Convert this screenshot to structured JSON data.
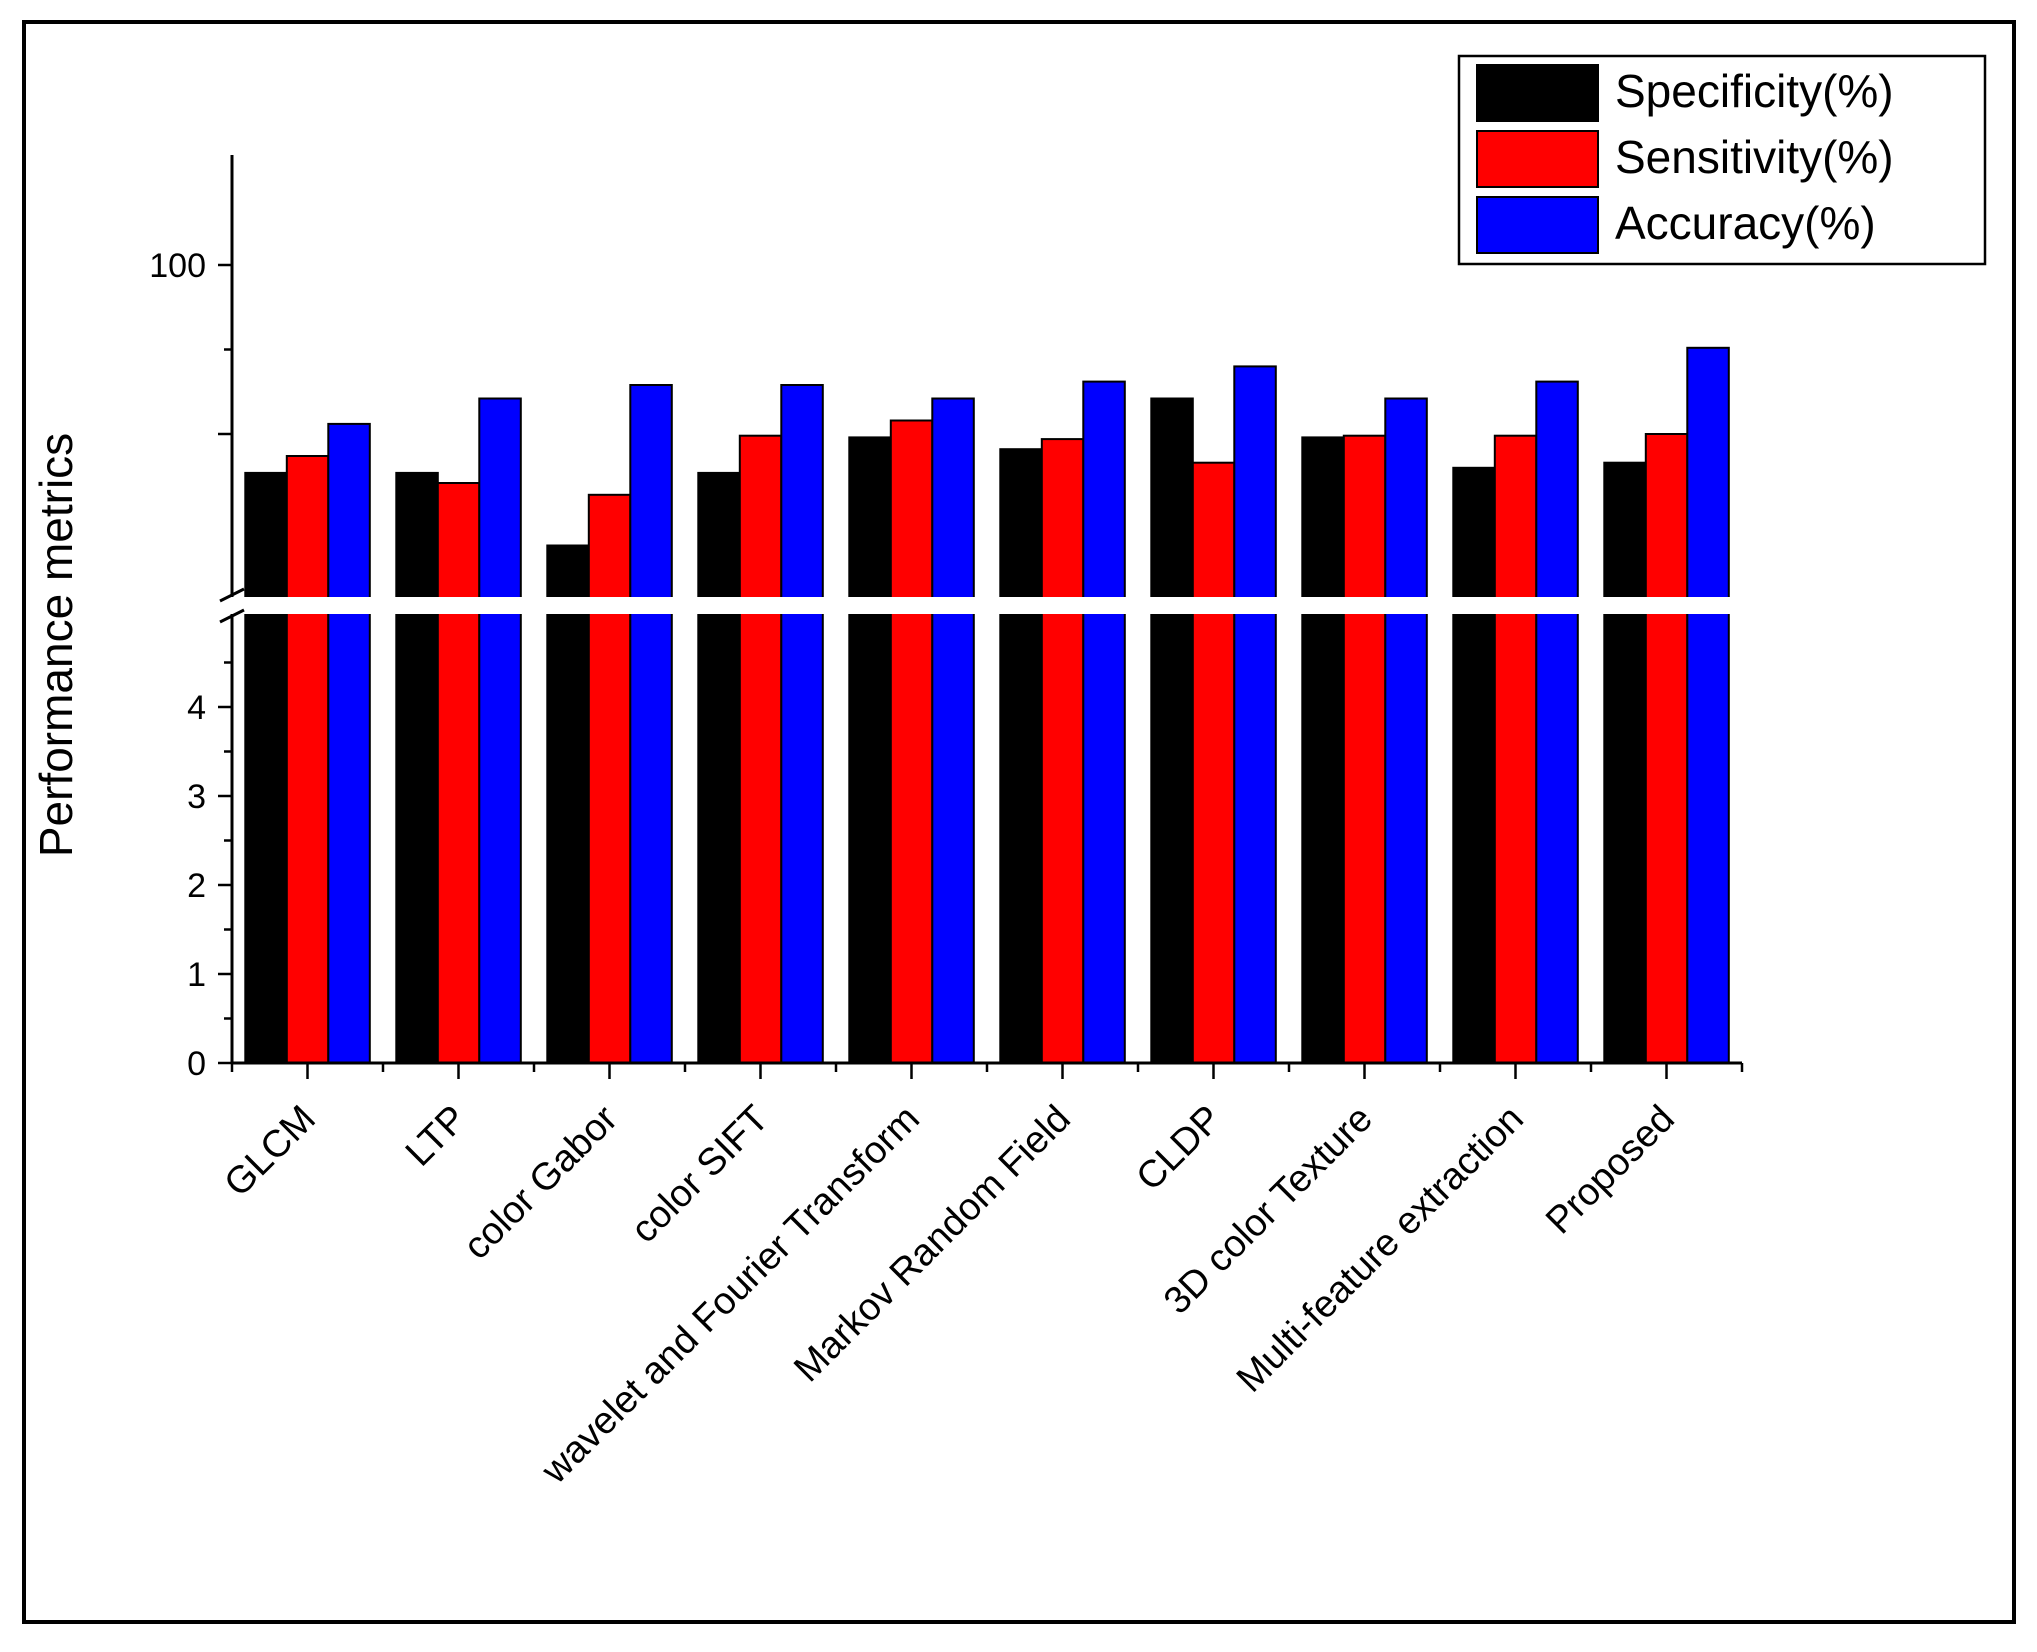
{
  "chart_data": {
    "type": "bar",
    "title": "",
    "xlabel": "",
    "ylabel": "Performance metrics",
    "axis_break": true,
    "lower_axis": {
      "ylim": [
        0,
        5
      ],
      "ticks": [
        "0",
        "1",
        "2",
        "3",
        "4"
      ]
    },
    "upper_axis": {
      "ylim": [
        80,
        106.6
      ],
      "ticks": [
        "100"
      ]
    },
    "categories": [
      "GLCM",
      "LTP",
      "color Gabor",
      "color SIFT",
      "wavelet and Fourier Transform",
      "Markov Random Field",
      "CLDP",
      "3D color Texture",
      "Multi-feature extraction",
      "Proposed"
    ],
    "series": [
      {
        "name": "Specificity(%)",
        "color": "#000000",
        "values": [
          87.7,
          87.7,
          83.4,
          87.7,
          89.8,
          89.1,
          92.1,
          89.8,
          88.0,
          88.3
        ]
      },
      {
        "name": "Sensitivity(%)",
        "color": "#ff0000",
        "values": [
          88.7,
          87.1,
          86.4,
          89.9,
          90.8,
          89.7,
          88.3,
          89.9,
          89.9,
          90.0
        ]
      },
      {
        "name": "Accuracy(%)",
        "color": "#0000ff",
        "values": [
          90.6,
          92.1,
          92.9,
          92.9,
          92.1,
          93.1,
          94.0,
          92.1,
          93.1,
          95.1
        ]
      }
    ],
    "legend": {
      "position": "top-right"
    }
  }
}
